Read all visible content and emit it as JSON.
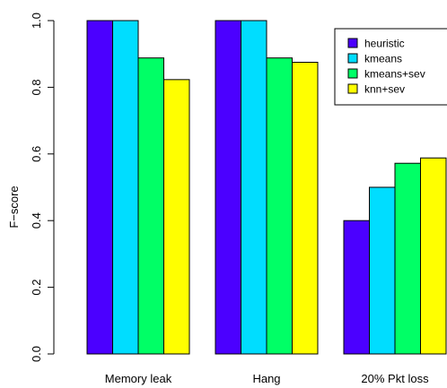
{
  "chart_data": {
    "type": "bar",
    "title": "",
    "xlabel": "",
    "ylabel": "F−score",
    "ylim": [
      0,
      1
    ],
    "yticks": [
      "0.0",
      "0.2",
      "0.4",
      "0.6",
      "0.8",
      "1.0"
    ],
    "categories": [
      "Memory leak",
      "Hang",
      "20% Pkt loss"
    ],
    "series": [
      {
        "name": "heuristic",
        "color": "#4B00FF",
        "values": [
          1.0,
          1.0,
          0.4
        ]
      },
      {
        "name": "kmeans",
        "color": "#00DDFF",
        "values": [
          1.0,
          1.0,
          0.5
        ]
      },
      {
        "name": "kmeans+sev",
        "color": "#00FF66",
        "values": [
          0.888,
          0.888,
          0.572
        ]
      },
      {
        "name": "knn+sev",
        "color": "#FFFF00",
        "values": [
          0.823,
          0.875,
          0.588
        ]
      }
    ],
    "legend_position": "top-right",
    "grid": false
  }
}
